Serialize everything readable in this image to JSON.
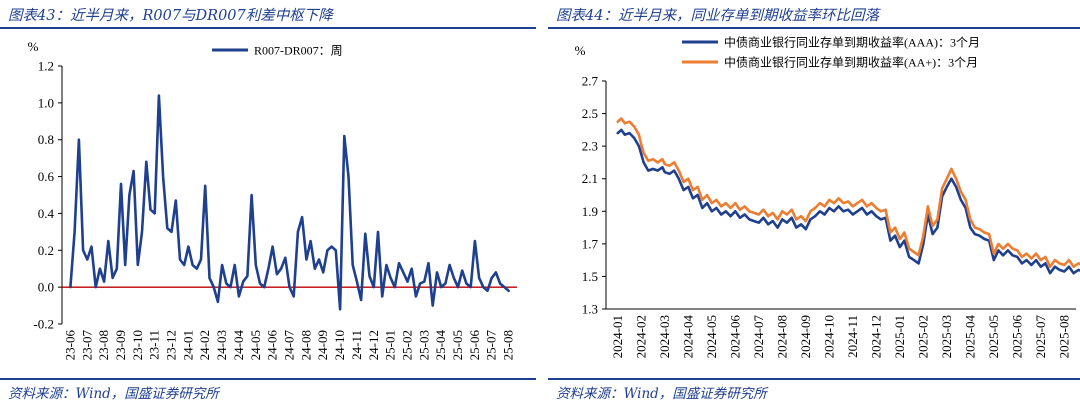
{
  "left": {
    "title": "图表43：近半月来，R007与DR007利差中枢下降",
    "source": "资料来源：Wind，国盛证券研究所",
    "chart_data": {
      "type": "line",
      "unit_label": "%",
      "ylim": [
        -0.2,
        1.2
      ],
      "yticks": [
        "1.2",
        "1.0",
        "0.8",
        "0.6",
        "0.4",
        "0.2",
        "0.0",
        "-0.2"
      ],
      "ytick_values": [
        1.2,
        1.0,
        0.8,
        0.6,
        0.4,
        0.2,
        0.0,
        -0.2
      ],
      "xticks": [
        "23-06",
        "23-07",
        "23-08",
        "23-09",
        "23-10",
        "23-11",
        "23-12",
        "24-01",
        "24-02",
        "24-03",
        "24-04",
        "24-05",
        "24-06",
        "24-07",
        "24-08",
        "24-09",
        "24-10",
        "24-11",
        "24-12",
        "25-01",
        "25-02",
        "25-03",
        "25-04",
        "25-05",
        "25-06",
        "25-07",
        "25-08"
      ],
      "grid": false,
      "zero_line": true,
      "legend_position": "top",
      "series": [
        {
          "name": "R007-DR007：周",
          "color": "#1f3f8f",
          "x": [
            0.0,
            0.25,
            0.5,
            0.75,
            1.0,
            1.25,
            1.5,
            1.75,
            2.0,
            2.25,
            2.5,
            2.75,
            3.0,
            3.25,
            3.5,
            3.75,
            4.0,
            4.25,
            4.5,
            4.75,
            5.0,
            5.25,
            5.5,
            5.75,
            6.0,
            6.25,
            6.5,
            6.75,
            7.0,
            7.25,
            7.5,
            7.75,
            8.0,
            8.25,
            8.5,
            8.75,
            9.0,
            9.25,
            9.5,
            9.75,
            10.0,
            10.25,
            10.5,
            10.75,
            11.0,
            11.25,
            11.5,
            11.75,
            12.0,
            12.25,
            12.5,
            12.75,
            13.0,
            13.25,
            13.5,
            13.75,
            14.0,
            14.25,
            14.5,
            14.75,
            15.0,
            15.25,
            15.5,
            15.75,
            16.0,
            16.25,
            16.5,
            16.75,
            17.0,
            17.25,
            17.5,
            17.75,
            18.0,
            18.25,
            18.5,
            18.75,
            19.0,
            19.25,
            19.5,
            19.75,
            20.0,
            20.25,
            20.5,
            20.75,
            21.0,
            21.25,
            21.5,
            21.75,
            22.0,
            22.25,
            22.5,
            22.75,
            23.0,
            23.25,
            23.5,
            23.75,
            24.0,
            24.25,
            24.5,
            24.75,
            25.0,
            25.25,
            25.5,
            25.75,
            26.0
          ],
          "values": [
            0.0,
            0.3,
            0.8,
            0.2,
            0.15,
            0.22,
            0.0,
            0.1,
            0.03,
            0.25,
            0.05,
            0.1,
            0.56,
            0.12,
            0.5,
            0.63,
            0.12,
            0.3,
            0.68,
            0.42,
            0.4,
            1.04,
            0.6,
            0.32,
            0.3,
            0.47,
            0.15,
            0.12,
            0.22,
            0.12,
            0.1,
            0.15,
            0.55,
            0.05,
            0.0,
            -0.08,
            0.12,
            0.02,
            0.0,
            0.12,
            -0.05,
            0.03,
            0.06,
            0.5,
            0.12,
            0.02,
            0.0,
            0.1,
            0.22,
            0.07,
            0.1,
            0.16,
            0.0,
            -0.05,
            0.3,
            0.38,
            0.15,
            0.25,
            0.1,
            0.15,
            0.08,
            0.2,
            0.22,
            0.2,
            -0.12,
            0.82,
            0.6,
            0.12,
            0.03,
            -0.07,
            0.29,
            0.06,
            0.0,
            0.3,
            -0.05,
            0.12,
            0.05,
            0.0,
            0.13,
            0.08,
            0.03,
            0.1,
            -0.05,
            0.02,
            0.03,
            0.13,
            -0.1,
            0.08,
            0.0,
            0.02,
            0.12,
            0.05,
            0.0,
            0.09,
            0.02,
            0.0,
            0.25,
            0.05,
            0.0,
            -0.02,
            0.05,
            0.08,
            0.02,
            0.0,
            -0.02
          ]
        }
      ]
    }
  },
  "right": {
    "title": "图表44：近半月来，同业存单到期收益率环比回落",
    "source": "资料来源：Wind，国盛证券研究所",
    "chart_data": {
      "type": "line",
      "unit_label": "%",
      "ylim": [
        1.3,
        2.7
      ],
      "yticks": [
        "2.7",
        "2.5",
        "2.3",
        "2.1",
        "1.9",
        "1.7",
        "1.5",
        "1.3"
      ],
      "ytick_values": [
        2.7,
        2.5,
        2.3,
        2.1,
        1.9,
        1.7,
        1.5,
        1.3
      ],
      "xticks": [
        "2024-01",
        "2024-02",
        "2024-03",
        "2024-04",
        "2024-05",
        "2024-06",
        "2024-07",
        "2024-08",
        "2024-09",
        "2024-10",
        "2024-11",
        "2024-12",
        "2025-01",
        "2025-02",
        "2025-03",
        "2025-04",
        "2025-05",
        "2025-06",
        "2025-07",
        "2025-08"
      ],
      "grid": false,
      "legend_position": "top",
      "series": [
        {
          "name": "中债商业银行同业存单到期收益率(AAA)：3个月",
          "color": "#1f3f8f",
          "x": [
            0.0,
            0.15,
            0.3,
            0.5,
            0.7,
            0.9,
            1.0,
            1.1,
            1.3,
            1.5,
            1.7,
            1.9,
            2.0,
            2.2,
            2.4,
            2.6,
            2.8,
            3.0,
            3.2,
            3.4,
            3.6,
            3.8,
            4.0,
            4.2,
            4.4,
            4.6,
            4.8,
            5.0,
            5.2,
            5.4,
            5.6,
            5.8,
            6.0,
            6.2,
            6.4,
            6.6,
            6.8,
            7.0,
            7.2,
            7.4,
            7.6,
            7.8,
            8.0,
            8.2,
            8.4,
            8.6,
            8.8,
            9.0,
            9.2,
            9.4,
            9.6,
            9.8,
            10.0,
            10.2,
            10.4,
            10.6,
            10.8,
            11.0,
            11.2,
            11.4,
            11.6,
            11.8,
            12.0,
            12.2,
            12.4,
            12.6,
            12.8,
            13.0,
            13.2,
            13.4,
            13.6,
            13.8,
            14.0,
            14.2,
            14.4,
            14.6,
            14.8,
            15.0,
            15.2,
            15.4,
            15.6,
            15.8,
            16.0,
            16.2,
            16.4,
            16.6,
            16.8,
            17.0,
            17.2,
            17.4,
            17.6,
            17.8,
            18.0,
            18.2,
            18.4,
            18.6,
            18.8,
            19.0,
            19.2,
            19.4,
            19.6,
            19.8
          ],
          "values": [
            2.38,
            2.4,
            2.37,
            2.38,
            2.35,
            2.3,
            2.25,
            2.2,
            2.15,
            2.16,
            2.15,
            2.17,
            2.14,
            2.13,
            2.15,
            2.1,
            2.03,
            2.05,
            1.98,
            2.0,
            1.92,
            1.95,
            1.9,
            1.92,
            1.88,
            1.9,
            1.87,
            1.9,
            1.86,
            1.88,
            1.85,
            1.84,
            1.83,
            1.86,
            1.82,
            1.84,
            1.8,
            1.85,
            1.83,
            1.86,
            1.8,
            1.82,
            1.79,
            1.85,
            1.87,
            1.9,
            1.88,
            1.92,
            1.9,
            1.93,
            1.9,
            1.91,
            1.88,
            1.9,
            1.92,
            1.88,
            1.9,
            1.87,
            1.85,
            1.86,
            1.72,
            1.75,
            1.68,
            1.72,
            1.62,
            1.6,
            1.58,
            1.7,
            1.88,
            1.76,
            1.8,
            1.99,
            2.05,
            2.1,
            2.05,
            1.97,
            1.92,
            1.8,
            1.76,
            1.75,
            1.73,
            1.72,
            1.6,
            1.66,
            1.63,
            1.66,
            1.63,
            1.62,
            1.58,
            1.6,
            1.57,
            1.6,
            1.56,
            1.58,
            1.52,
            1.56,
            1.54,
            1.53,
            1.56,
            1.52,
            1.54,
            1.53
          ]
        },
        {
          "name": "中债商业银行同业存单到期收益率(AA+)：3个月",
          "color": "#ed7d31",
          "x": [
            0.0,
            0.15,
            0.3,
            0.5,
            0.7,
            0.9,
            1.0,
            1.1,
            1.3,
            1.5,
            1.7,
            1.9,
            2.0,
            2.2,
            2.4,
            2.6,
            2.8,
            3.0,
            3.2,
            3.4,
            3.6,
            3.8,
            4.0,
            4.2,
            4.4,
            4.6,
            4.8,
            5.0,
            5.2,
            5.4,
            5.6,
            5.8,
            6.0,
            6.2,
            6.4,
            6.6,
            6.8,
            7.0,
            7.2,
            7.4,
            7.6,
            7.8,
            8.0,
            8.2,
            8.4,
            8.6,
            8.8,
            9.0,
            9.2,
            9.4,
            9.6,
            9.8,
            10.0,
            10.2,
            10.4,
            10.6,
            10.8,
            11.0,
            11.2,
            11.4,
            11.6,
            11.8,
            12.0,
            12.2,
            12.4,
            12.6,
            12.8,
            13.0,
            13.2,
            13.4,
            13.6,
            13.8,
            14.0,
            14.2,
            14.4,
            14.6,
            14.8,
            15.0,
            15.2,
            15.4,
            15.6,
            15.8,
            16.0,
            16.2,
            16.4,
            16.6,
            16.8,
            17.0,
            17.2,
            17.4,
            17.6,
            17.8,
            18.0,
            18.2,
            18.4,
            18.6,
            18.8,
            19.0,
            19.2,
            19.4,
            19.6,
            19.8
          ],
          "values": [
            2.45,
            2.47,
            2.44,
            2.45,
            2.42,
            2.37,
            2.31,
            2.26,
            2.21,
            2.22,
            2.2,
            2.22,
            2.19,
            2.18,
            2.2,
            2.15,
            2.08,
            2.1,
            2.03,
            2.05,
            1.97,
            2.0,
            1.95,
            1.97,
            1.93,
            1.95,
            1.92,
            1.95,
            1.91,
            1.93,
            1.9,
            1.89,
            1.88,
            1.91,
            1.87,
            1.89,
            1.85,
            1.9,
            1.88,
            1.91,
            1.85,
            1.87,
            1.84,
            1.9,
            1.92,
            1.95,
            1.93,
            1.97,
            1.95,
            1.98,
            1.95,
            1.96,
            1.93,
            1.95,
            1.97,
            1.93,
            1.95,
            1.92,
            1.9,
            1.91,
            1.77,
            1.8,
            1.73,
            1.77,
            1.67,
            1.65,
            1.63,
            1.75,
            1.93,
            1.81,
            1.85,
            2.04,
            2.1,
            2.16,
            2.1,
            2.02,
            1.97,
            1.85,
            1.8,
            1.79,
            1.77,
            1.76,
            1.64,
            1.7,
            1.67,
            1.7,
            1.67,
            1.66,
            1.62,
            1.64,
            1.61,
            1.64,
            1.6,
            1.62,
            1.56,
            1.6,
            1.58,
            1.57,
            1.6,
            1.56,
            1.58,
            1.57
          ]
        }
      ]
    }
  }
}
